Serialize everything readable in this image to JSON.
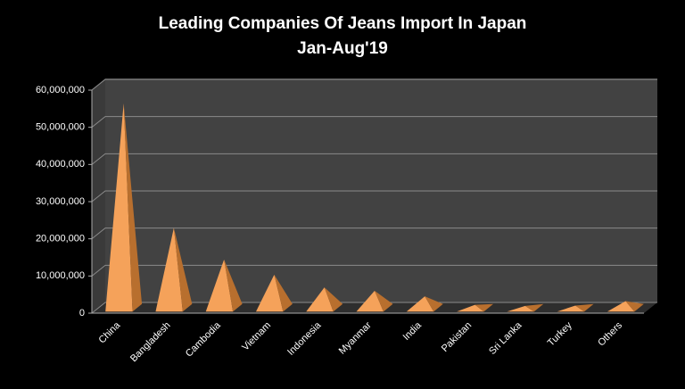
{
  "chart_data": {
    "type": "bar",
    "title": "Leading Companies Of Jeans Import In Japan",
    "subtitle": "Jan-Aug'19",
    "categories": [
      "China",
      "Bangladesh",
      "Cambodia",
      "Vietnam",
      "Indonesia",
      "Myanmar",
      "India",
      "Pakistan",
      "Sri Lanka",
      "Turkey",
      "Others"
    ],
    "values": [
      55000000,
      21500000,
      13000000,
      8900000,
      5500000,
      4600000,
      3100000,
      800000,
      500000,
      600000,
      1800000
    ],
    "color": "#f5a25a",
    "ylim": [
      0,
      60000000
    ],
    "yticks": [
      {
        "value": 0,
        "label": "0"
      },
      {
        "value": 10000000,
        "label": "10,000,000"
      },
      {
        "value": 20000000,
        "label": "20,000,000"
      },
      {
        "value": 30000000,
        "label": "30,000,000"
      },
      {
        "value": 40000000,
        "label": "40,000,000"
      },
      {
        "value": 50000000,
        "label": "50,000,000"
      },
      {
        "value": 60000000,
        "label": "60,000,000"
      }
    ],
    "grid": true
  }
}
